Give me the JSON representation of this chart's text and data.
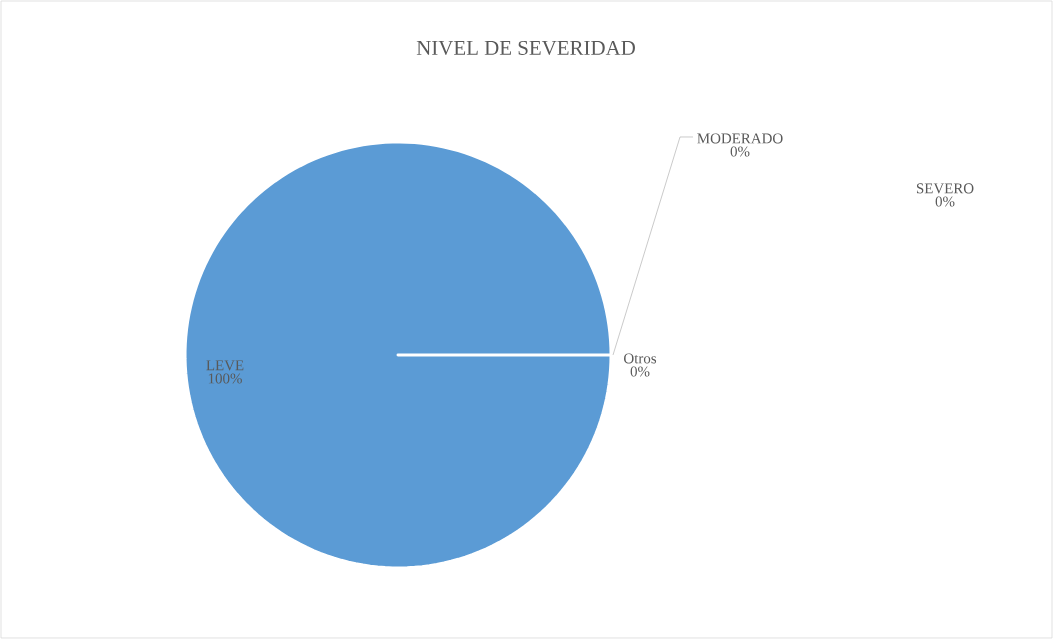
{
  "chart_data": {
    "type": "pie",
    "title": "NIVEL DE SEVERIDAD",
    "categories": [
      "LEVE",
      "MODERADO",
      "SEVERO",
      "Otros"
    ],
    "values": [
      100,
      0,
      0,
      0
    ],
    "colors": [
      "#5b9bd5",
      "#ed7d31",
      "#a5a5a5",
      "#ffc000"
    ],
    "value_labels": [
      "100%",
      "0%",
      "0%",
      "0%"
    ]
  }
}
